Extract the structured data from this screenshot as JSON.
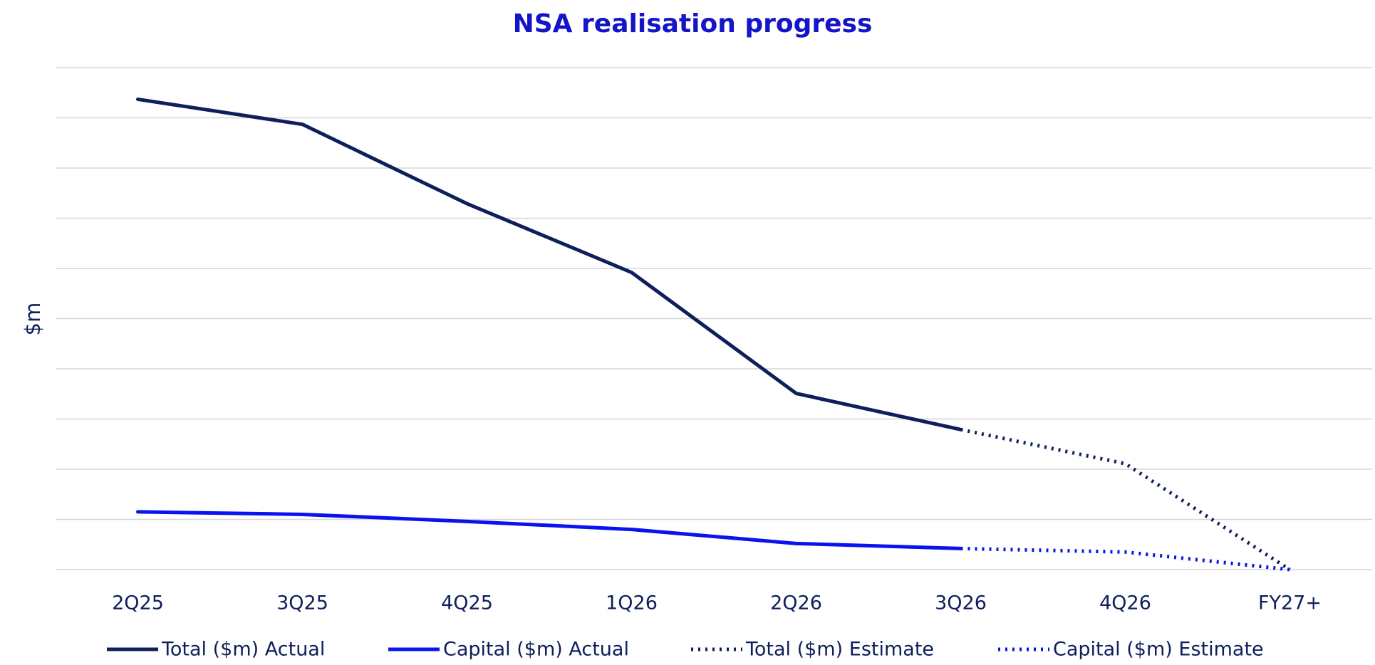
{
  "chart_data": {
    "type": "line",
    "title": "NSA realisation progress",
    "y_label": "$m",
    "categories": [
      "2Q25",
      "3Q25",
      "4Q25",
      "1Q26",
      "2Q26",
      "3Q26",
      "4Q26",
      "FY27+"
    ],
    "series": [
      {
        "name": "Total ($m) Actual",
        "color": "#0e1f5b",
        "dash": "solid",
        "values": [
          9.37,
          8.87,
          7.29,
          5.92,
          3.51,
          2.79,
          null,
          null
        ]
      },
      {
        "name": "Capital ($m) Actual",
        "color": "#0a12ee",
        "dash": "solid",
        "values": [
          1.15,
          1.1,
          0.96,
          0.8,
          0.52,
          0.42,
          null,
          null
        ]
      },
      {
        "name": "Total ($m) Estimate",
        "color": "#0e1f5b",
        "dash": "dotted",
        "values": [
          null,
          null,
          null,
          null,
          null,
          2.79,
          2.11,
          0
        ]
      },
      {
        "name": "Capital ($m) Estimate",
        "color": "#0a12ee",
        "dash": "dotted",
        "values": [
          null,
          null,
          null,
          null,
          null,
          0.42,
          0.35,
          0
        ]
      }
    ],
    "ylim": [
      0,
      10
    ],
    "yticks": [
      0,
      1,
      2,
      3,
      4,
      5,
      6,
      7,
      8,
      9,
      10
    ],
    "grid": true,
    "legend": "bottom"
  }
}
